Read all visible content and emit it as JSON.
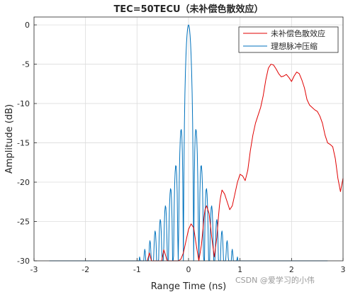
{
  "chart_data": {
    "type": "line",
    "title": "TEC=50TECU（未补偿色散效应）",
    "xlabel": "Range Time (ns)",
    "ylabel": "Amplitude (dB)",
    "xlim": [
      -3,
      3
    ],
    "ylim": [
      -30,
      1
    ],
    "xticks": [
      -3,
      -2,
      -1,
      0,
      1,
      2,
      3
    ],
    "yticks": [
      0,
      -5,
      -10,
      -15,
      -20,
      -25,
      -30
    ],
    "grid": true,
    "legend_position": "top-right",
    "series": [
      {
        "name": "未补偿色散效应",
        "color": "#e00000",
        "x": [
          -0.8,
          -0.78,
          -0.76,
          -0.74,
          -0.72,
          -0.7,
          -0.6,
          -0.52,
          -0.5,
          -0.48,
          -0.45,
          -0.42,
          -0.4,
          -0.38,
          -0.3,
          -0.2,
          -0.15,
          -0.1,
          -0.05,
          0.0,
          0.05,
          0.1,
          0.15,
          0.2,
          0.25,
          0.28,
          0.3,
          0.32,
          0.35,
          0.4,
          0.45,
          0.5,
          0.55,
          0.58,
          0.6,
          0.62,
          0.65,
          0.7,
          0.75,
          0.8,
          0.85,
          0.9,
          0.95,
          1.0,
          1.05,
          1.1,
          1.15,
          1.2,
          1.25,
          1.3,
          1.35,
          1.4,
          1.45,
          1.5,
          1.55,
          1.6,
          1.65,
          1.7,
          1.75,
          1.8,
          1.85,
          1.9,
          1.95,
          2.0,
          2.05,
          2.1,
          2.15,
          2.2,
          2.25,
          2.3,
          2.35,
          2.4,
          2.45,
          2.5,
          2.55,
          2.6,
          2.65,
          2.7,
          2.75,
          2.8,
          2.85,
          2.9,
          2.95,
          3.0
        ],
        "values": [
          -30,
          -29.5,
          -29.0,
          -29.5,
          -30,
          -30,
          -30,
          -30,
          -29.3,
          -28.6,
          -29.2,
          -29.9,
          -30,
          -30,
          -30,
          -30,
          -29.8,
          -29.0,
          -27.5,
          -26.0,
          -25.3,
          -25.8,
          -28.0,
          -30,
          -28.0,
          -26.0,
          -24.5,
          -23.5,
          -23.0,
          -24.0,
          -27.0,
          -29.5,
          -27.0,
          -24.5,
          -23.0,
          -22.0,
          -21.0,
          -21.5,
          -22.5,
          -23.5,
          -23.0,
          -21.5,
          -20.0,
          -19.0,
          -19.2,
          -19.8,
          -18.5,
          -16.0,
          -14.0,
          -12.5,
          -11.5,
          -10.5,
          -9.0,
          -7.0,
          -5.5,
          -5.0,
          -5.1,
          -5.6,
          -6.2,
          -6.6,
          -6.5,
          -6.3,
          -6.7,
          -7.2,
          -6.5,
          -6.0,
          -6.2,
          -7.0,
          -8.0,
          -9.5,
          -10.2,
          -10.5,
          -10.8,
          -11.0,
          -11.6,
          -12.5,
          -14.0,
          -15.0,
          -15.2,
          -15.5,
          -17.0,
          -19.5,
          -21.2,
          -19.5
        ]
      },
      {
        "name": "理想脉冲压缩",
        "color": "#0072bd",
        "x": [],
        "values": []
      }
    ]
  },
  "watermark": "CSDN @爱学习的小伟"
}
